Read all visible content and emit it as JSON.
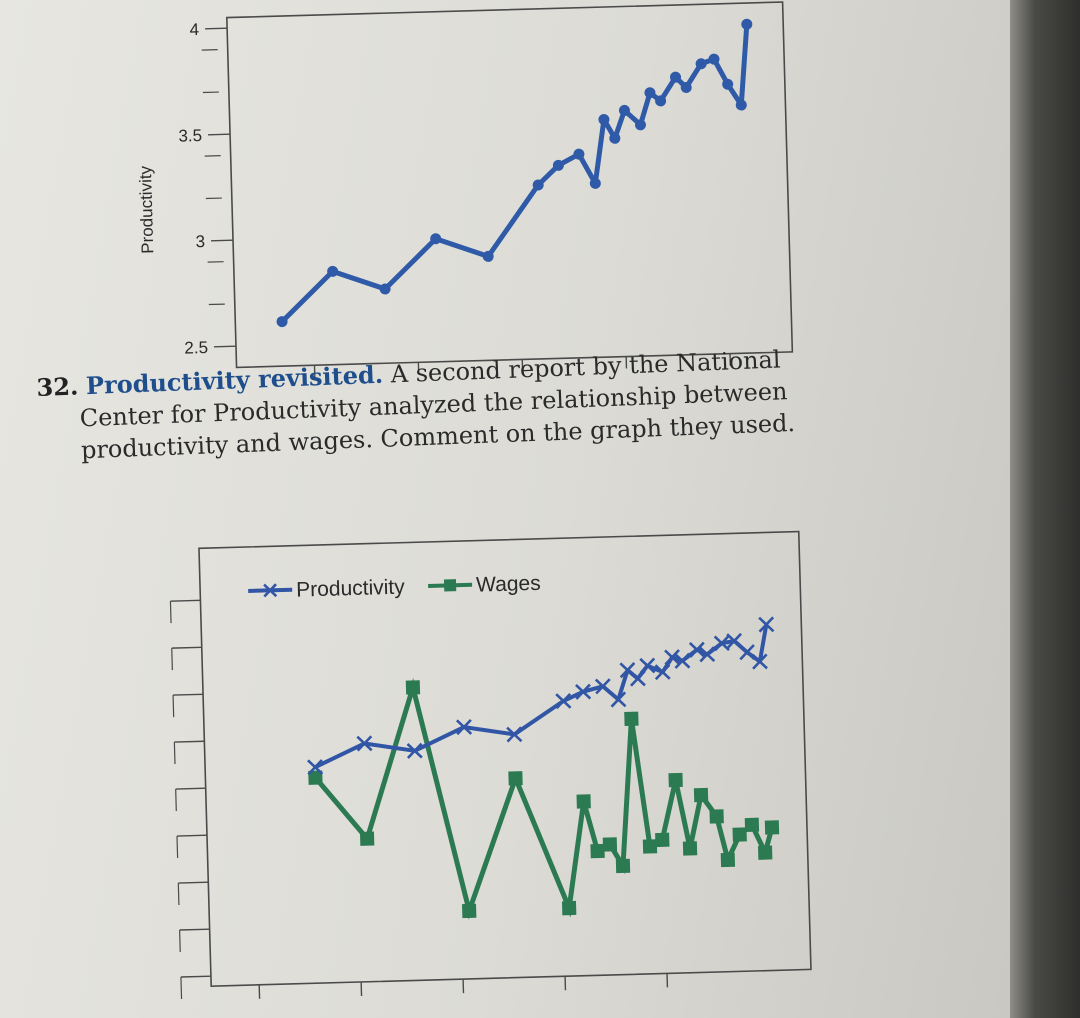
{
  "chart_data": [
    {
      "type": "line",
      "title": "",
      "xlabel": "",
      "ylabel": "Productivity",
      "ylim": [
        2.4,
        4.05
      ],
      "yticks": [
        "2.5",
        "3",
        "3.5",
        "4"
      ],
      "grid": false,
      "series": [
        {
          "name": "",
          "color": "#2f5aa8",
          "x": [
            1,
            2,
            3,
            4,
            5,
            6,
            6.4,
            6.8,
            7.1,
            7.3,
            7.5,
            7.7,
            8.0,
            8.2,
            8.4,
            8.7,
            8.9,
            9.2,
            9.45,
            9.7,
            9.95,
            10.1
          ],
          "values": [
            2.61,
            2.84,
            2.75,
            2.98,
            2.89,
            3.22,
            3.31,
            3.36,
            3.22,
            3.52,
            3.43,
            3.56,
            3.49,
            3.64,
            3.6,
            3.71,
            3.66,
            3.77,
            3.79,
            3.67,
            3.57,
            3.95
          ]
        }
      ]
    },
    {
      "type": "line",
      "title": "",
      "xlabel": "",
      "ylabel": "",
      "legend": "top",
      "grid": false,
      "series": [
        {
          "name": "Productivity",
          "color": "#3256a6",
          "marker": "x",
          "x": [
            1,
            2,
            3,
            4,
            5,
            6,
            6.4,
            6.8,
            7.1,
            7.3,
            7.5,
            7.7,
            8.0,
            8.2,
            8.4,
            8.7,
            8.9,
            9.2,
            9.45,
            9.7,
            9.95,
            10.1
          ],
          "values": [
            2.61,
            2.84,
            2.75,
            2.98,
            2.89,
            3.22,
            3.31,
            3.36,
            3.22,
            3.52,
            3.43,
            3.56,
            3.49,
            3.64,
            3.6,
            3.71,
            3.66,
            3.77,
            3.79,
            3.67,
            3.57,
            3.95
          ]
        },
        {
          "name": "Wages",
          "color": "#2c7a52",
          "marker": "square",
          "x": [
            1,
            2,
            3,
            4,
            5,
            6,
            6.35,
            6.6,
            6.85,
            7.1,
            7.35,
            7.65,
            7.9,
            8.2,
            8.45,
            8.7,
            9.0,
            9.2,
            9.45,
            9.7,
            9.95,
            10.1
          ],
          "values": [
            6.2,
            4.2,
            9.0,
            1.8,
            6.0,
            1.8,
            5.2,
            3.6,
            3.8,
            3.1,
            7.8,
            3.7,
            3.9,
            5.8,
            3.6,
            5.3,
            4.6,
            3.2,
            4.0,
            4.3,
            3.4,
            4.2
          ]
        }
      ]
    }
  ],
  "problem": {
    "number": "32.",
    "title": "Productivity revisited.",
    "line1": "A second report by the National",
    "line2": "Center for Productivity analyzed the relationship between",
    "line3": "productivity and wages. Comment on the graph they used."
  }
}
